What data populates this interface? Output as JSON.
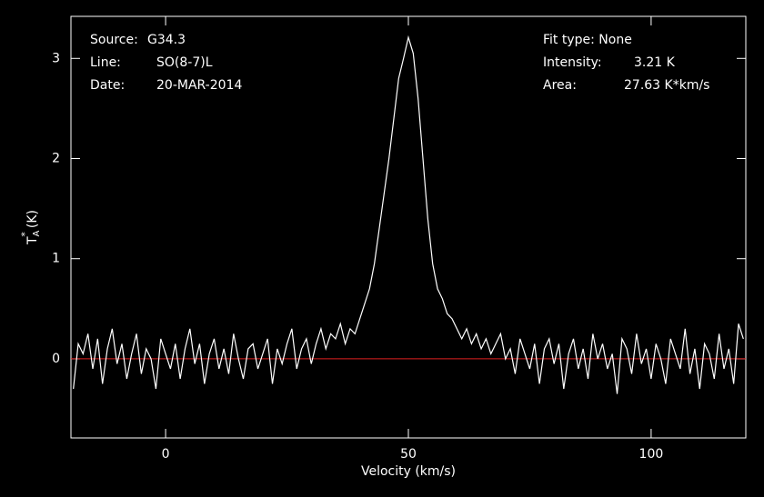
{
  "chart_data": {
    "type": "line",
    "annotations": {
      "source_label": "Source:",
      "source": "G34.3",
      "line_label": "Line:",
      "line": "SO(8-7)L",
      "date_label": "Date:",
      "date": "20-MAR-2014",
      "fit_type": "Fit type: None",
      "intensity_label": "Intensity:",
      "intensity": "3.21 K",
      "area_label": "Area:",
      "area": "27.63 K*km/s"
    },
    "x_label": "Velocity (km/s)",
    "y_label": {
      "base": "T",
      "sub": "A",
      "sup": "*",
      "unit": "(K)"
    },
    "xlim": [
      -19.5,
      119.5
    ],
    "xticks": [
      0,
      50,
      100
    ],
    "ylim": [
      -0.79,
      3.42
    ],
    "yticks": [
      0,
      1,
      2,
      3
    ],
    "baseline": 0,
    "baseline_color": "#e02020",
    "x": [
      -19,
      -18,
      -17,
      -16,
      -15,
      -14,
      -13,
      -12,
      -11,
      -10,
      -9,
      -8,
      -7,
      -6,
      -5,
      -4,
      -3,
      -2,
      -1,
      0,
      1,
      2,
      3,
      4,
      5,
      6,
      7,
      8,
      9,
      10,
      11,
      12,
      13,
      14,
      15,
      16,
      17,
      18,
      19,
      20,
      21,
      22,
      23,
      24,
      25,
      26,
      27,
      28,
      29,
      30,
      31,
      32,
      33,
      34,
      35,
      36,
      37,
      38,
      39,
      40,
      41,
      42,
      43,
      44,
      45,
      46,
      47,
      48,
      49,
      50,
      51,
      52,
      53,
      54,
      55,
      56,
      57,
      58,
      59,
      60,
      61,
      62,
      63,
      64,
      65,
      66,
      67,
      68,
      69,
      70,
      71,
      72,
      73,
      74,
      75,
      76,
      77,
      78,
      79,
      80,
      81,
      82,
      83,
      84,
      85,
      86,
      87,
      88,
      89,
      90,
      91,
      92,
      93,
      94,
      95,
      96,
      97,
      98,
      99,
      100,
      101,
      102,
      103,
      104,
      105,
      106,
      107,
      108,
      109,
      110,
      111,
      112,
      113,
      114,
      115,
      116,
      117,
      118,
      119
    ],
    "series": [
      {
        "color": "#ffffff",
        "values": [
          -0.3,
          0.15,
          0.05,
          0.25,
          -0.1,
          0.2,
          -0.25,
          0.1,
          0.3,
          -0.05,
          0.15,
          -0.2,
          0.05,
          0.25,
          -0.15,
          0.1,
          0.0,
          -0.3,
          0.2,
          0.05,
          -0.1,
          0.15,
          -0.2,
          0.1,
          0.3,
          -0.05,
          0.15,
          -0.25,
          0.05,
          0.2,
          -0.1,
          0.1,
          -0.15,
          0.25,
          0.0,
          -0.2,
          0.1,
          0.15,
          -0.1,
          0.05,
          0.2,
          -0.25,
          0.1,
          -0.05,
          0.15,
          0.3,
          -0.1,
          0.1,
          0.2,
          -0.05,
          0.15,
          0.3,
          0.1,
          0.25,
          0.2,
          0.35,
          0.15,
          0.3,
          0.25,
          0.4,
          0.55,
          0.7,
          0.95,
          1.3,
          1.65,
          2.0,
          2.4,
          2.8,
          3.0,
          3.21,
          3.05,
          2.6,
          2.0,
          1.4,
          0.95,
          0.7,
          0.6,
          0.45,
          0.4,
          0.3,
          0.2,
          0.3,
          0.15,
          0.25,
          0.1,
          0.2,
          0.05,
          0.15,
          0.25,
          0.0,
          0.1,
          -0.15,
          0.2,
          0.05,
          -0.1,
          0.15,
          -0.25,
          0.1,
          0.2,
          -0.05,
          0.15,
          -0.3,
          0.05,
          0.2,
          -0.1,
          0.1,
          -0.2,
          0.25,
          0.0,
          0.15,
          -0.1,
          0.05,
          -0.35,
          0.2,
          0.1,
          -0.15,
          0.25,
          -0.05,
          0.1,
          -0.2,
          0.15,
          0.0,
          -0.25,
          0.2,
          0.05,
          -0.1,
          0.3,
          -0.15,
          0.1,
          -0.3,
          0.15,
          0.05,
          -0.2,
          0.25,
          -0.1,
          0.1,
          -0.25,
          0.35,
          0.2
        ]
      }
    ]
  }
}
